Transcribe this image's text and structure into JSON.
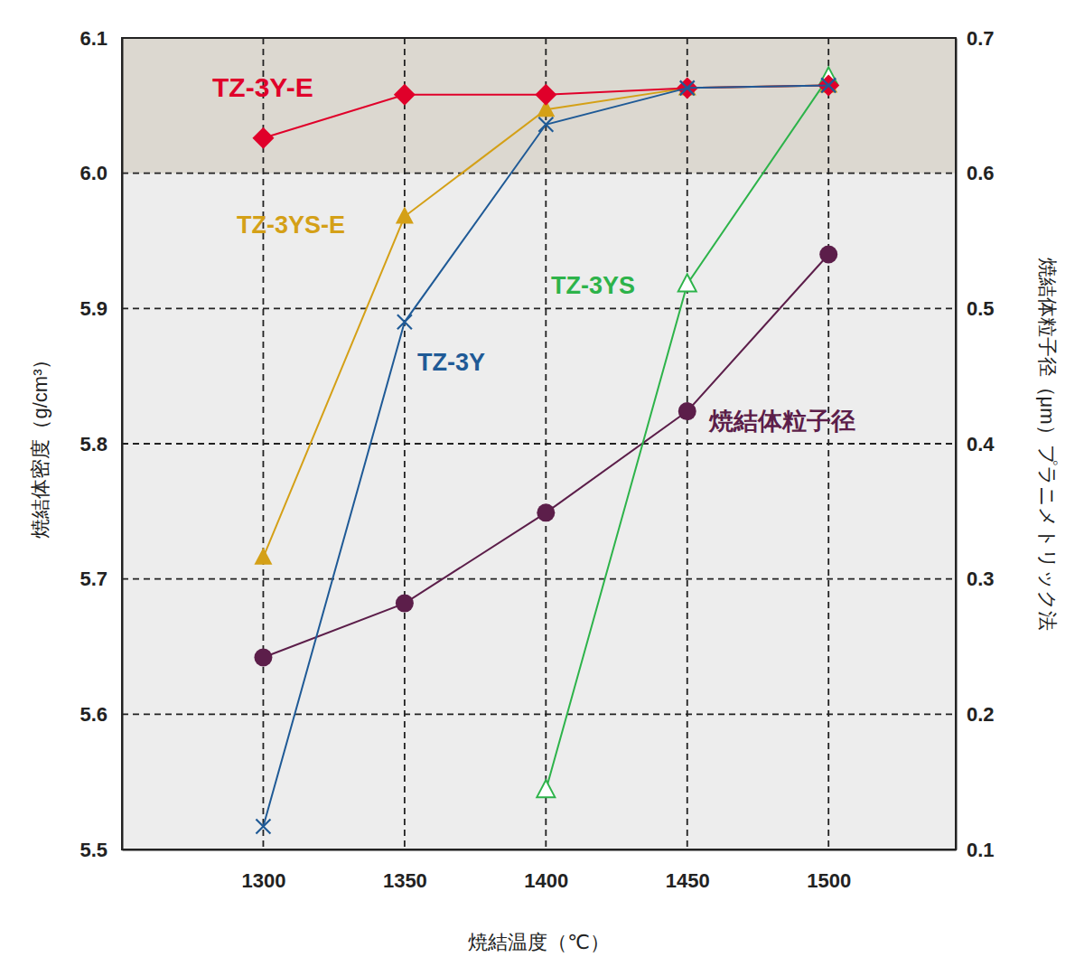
{
  "chart_data": {
    "type": "line",
    "x_label": "焼結温度（℃）",
    "y_label": "焼結体密度（g/cm³）",
    "y2_label": "焼結体粒子径（μm）プラニメトリック法",
    "x": [
      1300,
      1350,
      1400,
      1450,
      1500
    ],
    "xlim": [
      1250,
      1545
    ],
    "xticks": [
      1300,
      1350,
      1400,
      1450,
      1500
    ],
    "ylim": [
      5.5,
      6.1
    ],
    "yticks": [
      5.5,
      5.6,
      5.7,
      5.8,
      5.9,
      {
        "value": 6,
        "label": "6.0"
      },
      6.1
    ],
    "y2lim": [
      0.1,
      0.7
    ],
    "y2ticks": [
      0.1,
      0.2,
      0.3,
      0.4,
      0.5,
      0.6,
      0.7
    ],
    "grid": true,
    "series": [
      {
        "name": "TZ-3Y-E",
        "color": "#e0002a",
        "marker": "diamond",
        "values": [
          6.026,
          6.058,
          6.058,
          6.063,
          6.065
        ]
      },
      {
        "name": "TZ-3YS-E",
        "color": "#d4a017",
        "marker": "triangle",
        "values": [
          5.716,
          5.968,
          6.047,
          6.063,
          6.065
        ]
      },
      {
        "name": "TZ-3Y",
        "color": "#1f5a96",
        "marker": "x",
        "values": [
          5.517,
          5.89,
          6.036,
          6.063,
          6.065
        ]
      },
      {
        "name": "TZ-3YS",
        "color": "#2db34a",
        "marker": "triangle-open",
        "values": [
          null,
          null,
          5.544,
          5.918,
          6.071
        ]
      },
      {
        "name": "焼結体粒子径",
        "color": "#5c1e4a",
        "marker": "circle",
        "axis": "y2",
        "values": [
          0.242,
          0.282,
          0.349,
          0.424,
          0.54
        ]
      }
    ]
  }
}
